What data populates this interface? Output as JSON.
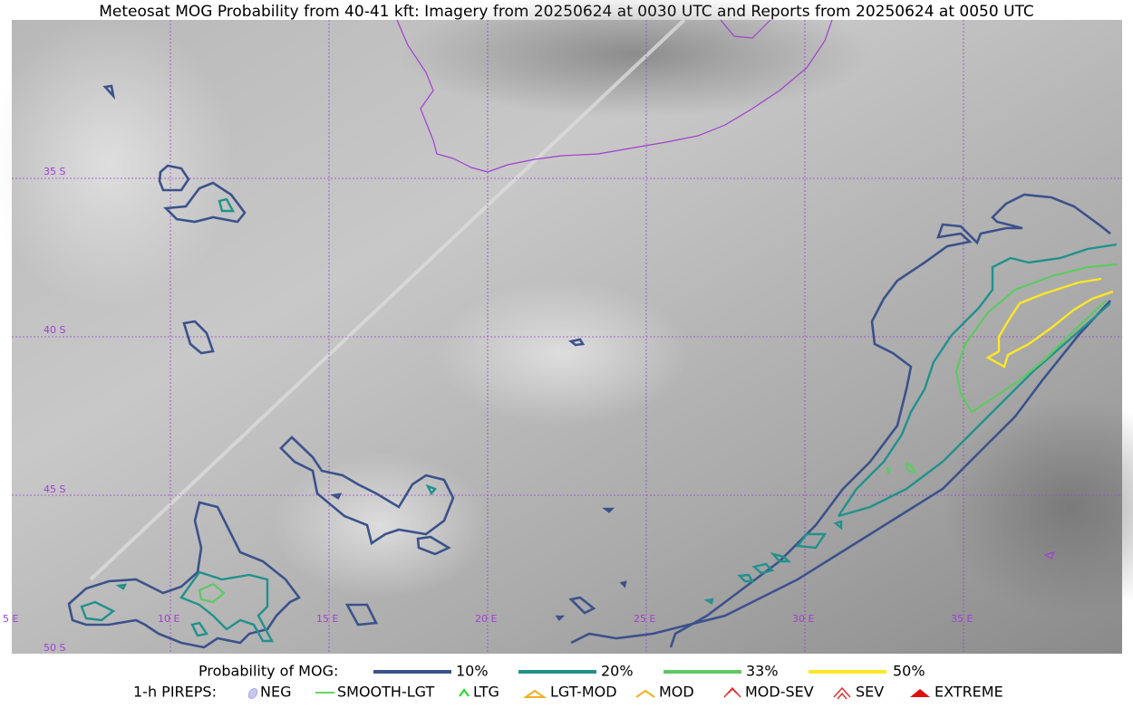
{
  "title": "Meteosat MOG Probability from 40-41 kft: Imagery from 20250624 at 0030 UTC and Reports from 20250624 at 0050 UTC",
  "map": {
    "lat_labels": [
      "35 S",
      "40 S",
      "45 S",
      "50 S"
    ],
    "lon_labels": [
      "5 E",
      "10 E",
      "15 E",
      "20 E",
      "25 E",
      "30 E",
      "35 E"
    ]
  },
  "legend": {
    "probability": {
      "label": "Probability of MOG:",
      "items": [
        "10%",
        "20%",
        "33%",
        "50%"
      ]
    },
    "pireps": {
      "label": "1-h PIREPS:",
      "items": [
        "NEG",
        "SMOOTH-LGT",
        "LTG",
        "LGT-MOD",
        "MOD",
        "MOD-SEV",
        "SEV",
        "EXTREME"
      ]
    }
  }
}
